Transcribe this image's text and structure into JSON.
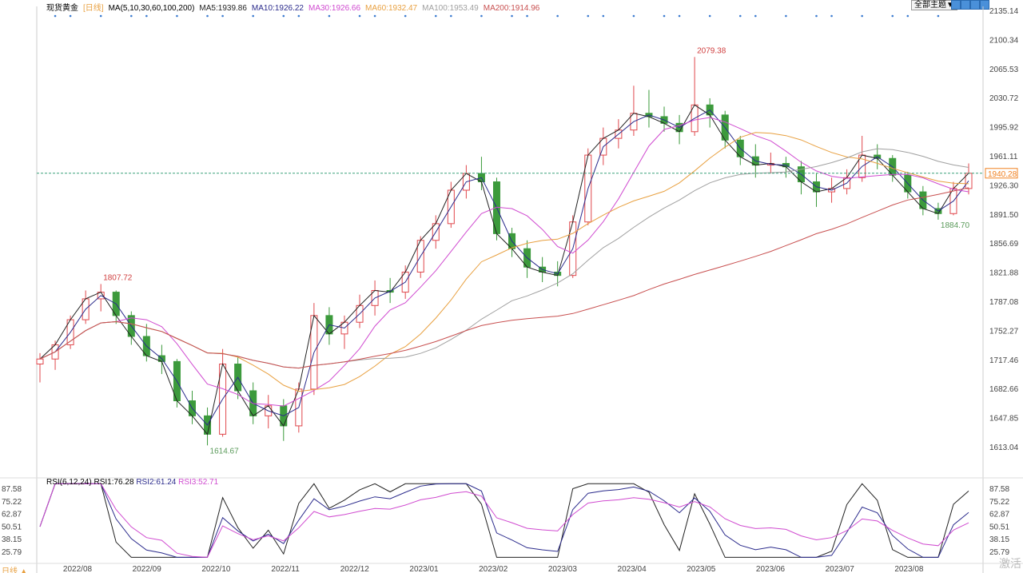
{
  "header": {
    "symbol": "现货黄金",
    "period": "[日线]",
    "ma_title": "MA(5,10,30,60,100,200)",
    "ma": [
      {
        "label": "MA5:1939.86",
        "color": "#222222"
      },
      {
        "label": "MA10:1926.22",
        "color": "#2b2b8c"
      },
      {
        "label": "MA30:1926.66",
        "color": "#d04bd0"
      },
      {
        "label": "MA60:1932.47",
        "color": "#e8a040"
      },
      {
        "label": "MA100:1953.49",
        "color": "#a0a0a0"
      },
      {
        "label": "MA200:1914.96",
        "color": "#c85050"
      }
    ],
    "theme_button": "全部主题▼"
  },
  "rsi": {
    "title": "RSI(6,12,24)",
    "rsi1": "RSI1:76.28",
    "rsi2": "RSI2:61.24",
    "rsi3": "RSI3:52.71",
    "ticks": [
      "87.58",
      "75.22",
      "62.87",
      "50.51",
      "38.15",
      "25.79"
    ]
  },
  "footer": {
    "period_label": "日线 ▲",
    "watermark": "激活"
  },
  "colors": {
    "up": "#e0474c",
    "down": "#3c9a3c",
    "price_line": "#3aa07a",
    "price_tag": "#f08020"
  },
  "chart_data": {
    "type": "candlestick",
    "y_ticks": [
      "2135.14",
      "2100.34",
      "2065.53",
      "2030.72",
      "1995.92",
      "1961.11",
      "1926.30",
      "1891.50",
      "1856.69",
      "1821.88",
      "1787.08",
      "1752.27",
      "1717.46",
      "1682.66",
      "1647.85",
      "1613.04"
    ],
    "ylim": [
      1613.04,
      2135.14
    ],
    "x_ticks": [
      "2022/08",
      "2022/09",
      "2022/10",
      "2022/11",
      "2022/12",
      "2023/01",
      "2023/02",
      "2023/03",
      "2023/04",
      "2023/05",
      "2023/06",
      "2023/07",
      "2023/08"
    ],
    "current_price": "1940.28",
    "annotations": [
      {
        "label": "1807.72",
        "type": "high"
      },
      {
        "label": "1614.67",
        "type": "low"
      },
      {
        "label": "2079.38",
        "type": "high"
      },
      {
        "label": "1884.70",
        "type": "low"
      }
    ],
    "candles": [
      [
        1712,
        1725,
        1690,
        1718
      ],
      [
        1718,
        1740,
        1705,
        1735
      ],
      [
        1735,
        1770,
        1730,
        1765
      ],
      [
        1765,
        1800,
        1760,
        1790
      ],
      [
        1790,
        1807.72,
        1775,
        1798
      ],
      [
        1798,
        1800,
        1760,
        1770
      ],
      [
        1770,
        1775,
        1735,
        1745
      ],
      [
        1745,
        1760,
        1715,
        1722
      ],
      [
        1722,
        1735,
        1700,
        1715
      ],
      [
        1715,
        1718,
        1660,
        1668
      ],
      [
        1668,
        1680,
        1640,
        1650
      ],
      [
        1650,
        1660,
        1614.67,
        1628
      ],
      [
        1628,
        1730,
        1625,
        1712
      ],
      [
        1712,
        1720,
        1670,
        1680
      ],
      [
        1680,
        1690,
        1640,
        1650
      ],
      [
        1650,
        1675,
        1635,
        1662
      ],
      [
        1662,
        1670,
        1620,
        1638
      ],
      [
        1638,
        1690,
        1630,
        1682
      ],
      [
        1682,
        1785,
        1675,
        1770
      ],
      [
        1770,
        1780,
        1735,
        1748
      ],
      [
        1748,
        1770,
        1730,
        1762
      ],
      [
        1762,
        1795,
        1755,
        1782
      ],
      [
        1782,
        1812,
        1770,
        1800
      ],
      [
        1800,
        1815,
        1785,
        1798
      ],
      [
        1798,
        1830,
        1790,
        1822
      ],
      [
        1822,
        1865,
        1815,
        1860
      ],
      [
        1860,
        1890,
        1850,
        1880
      ],
      [
        1880,
        1930,
        1875,
        1920
      ],
      [
        1920,
        1950,
        1910,
        1940
      ],
      [
        1940,
        1960,
        1920,
        1930
      ],
      [
        1930,
        1935,
        1860,
        1868
      ],
      [
        1868,
        1875,
        1840,
        1850
      ],
      [
        1850,
        1860,
        1815,
        1828
      ],
      [
        1828,
        1840,
        1810,
        1822
      ],
      [
        1822,
        1835,
        1805,
        1818
      ],
      [
        1818,
        1890,
        1815,
        1882
      ],
      [
        1882,
        1970,
        1878,
        1962
      ],
      [
        1962,
        1995,
        1950,
        1982
      ],
      [
        1982,
        2005,
        1970,
        1992
      ],
      [
        1992,
        2045,
        1985,
        2012
      ],
      [
        2012,
        2040,
        1995,
        2008
      ],
      [
        2008,
        2020,
        1990,
        2000
      ],
      [
        2000,
        2010,
        1975,
        1990
      ],
      [
        1990,
        2079.38,
        1985,
        2022
      ],
      [
        2022,
        2030,
        1995,
        2010
      ],
      [
        2010,
        2015,
        1970,
        1980
      ],
      [
        1980,
        1985,
        1950,
        1960
      ],
      [
        1960,
        1975,
        1935,
        1950
      ],
      [
        1950,
        1965,
        1940,
        1952
      ],
      [
        1952,
        1960,
        1935,
        1948
      ],
      [
        1948,
        1955,
        1915,
        1930
      ],
      [
        1930,
        1940,
        1900,
        1918
      ],
      [
        1918,
        1935,
        1905,
        1922
      ],
      [
        1922,
        1945,
        1915,
        1935
      ],
      [
        1935,
        1985,
        1930,
        1962
      ],
      [
        1962,
        1975,
        1945,
        1958
      ],
      [
        1958,
        1962,
        1930,
        1938
      ],
      [
        1938,
        1942,
        1910,
        1918
      ],
      [
        1918,
        1925,
        1890,
        1898
      ],
      [
        1898,
        1905,
        1884.7,
        1892
      ],
      [
        1892,
        1930,
        1890,
        1922
      ],
      [
        1922,
        1952,
        1915,
        1940.28
      ]
    ]
  }
}
